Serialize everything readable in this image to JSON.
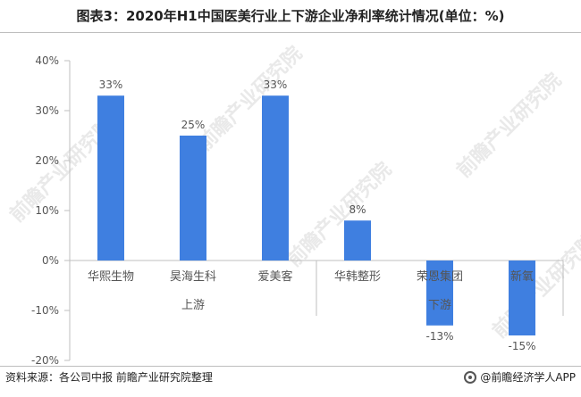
{
  "title": "图表3：2020年H1中国医美行业上下游企业净利率统计情况(单位：%)",
  "footer": {
    "source": "资料来源：各公司中报 前瞻产业研究院整理",
    "brand": "@前瞻经济学人APP"
  },
  "watermark": "前瞻产业研究院",
  "colors": {
    "bar": "#3f7fe0",
    "axis": "#bfbfbf",
    "text": "#555555"
  },
  "chart_data": {
    "type": "bar",
    "categories": [
      "华熙生物",
      "昊海生科",
      "爱美客",
      "华韩整形",
      "荣恩集团",
      "新氧"
    ],
    "groups": [
      {
        "label": "上游",
        "categories": [
          "华熙生物",
          "昊海生科",
          "爱美客"
        ]
      },
      {
        "label": "下游",
        "categories": [
          "华韩整形",
          "荣恩集团",
          "新氧"
        ]
      }
    ],
    "values": [
      33,
      25,
      33,
      8,
      -13,
      -15
    ],
    "data_labels": [
      "33%",
      "25%",
      "33%",
      "8%",
      "-13%",
      "-15%"
    ],
    "ylim": [
      -20,
      40
    ],
    "yticks": [
      -20,
      -10,
      0,
      10,
      20,
      30,
      40
    ],
    "ytick_labels": [
      "-20%",
      "-10%",
      "0%",
      "10%",
      "20%",
      "30%",
      "40%"
    ],
    "grid": false,
    "legend": "none"
  }
}
